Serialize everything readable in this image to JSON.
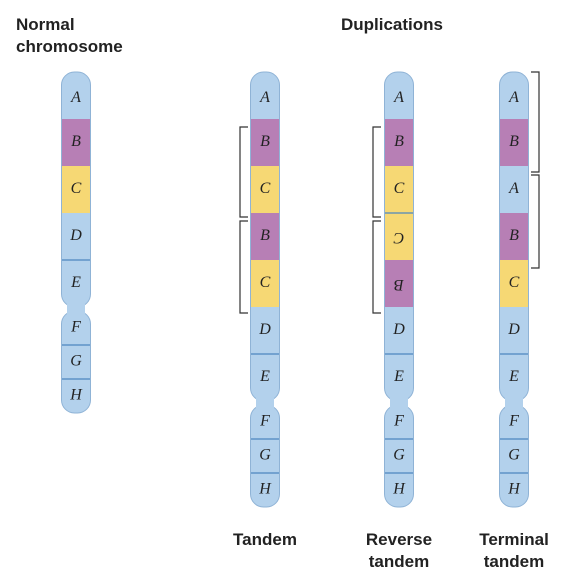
{
  "headers": {
    "normal": [
      "Normal",
      "chromosome"
    ],
    "duplications": "Duplications"
  },
  "chromosomes": [
    {
      "segments": [
        {
          "letter": "A",
          "color": "#b3d1ec"
        },
        {
          "letter": "B",
          "color": "#b77fb5"
        },
        {
          "letter": "C",
          "color": "#f6d874"
        },
        {
          "letter": "D",
          "color": "#b3d1ec"
        },
        {
          "letter": "E",
          "color": "#b3d1ec"
        },
        {
          "letter": "F",
          "color": "#b3d1ec"
        },
        {
          "letter": "G",
          "color": "#b3d1ec"
        },
        {
          "letter": "H",
          "color": "#b3d1ec"
        }
      ]
    },
    {
      "name": [
        "Tandem"
      ],
      "segments": [
        {
          "letter": "A",
          "color": "#b3d1ec"
        },
        {
          "letter": "B",
          "color": "#b77fb5"
        },
        {
          "letter": "C",
          "color": "#f6d874"
        },
        {
          "letter": "B",
          "color": "#b77fb5"
        },
        {
          "letter": "C",
          "color": "#f6d874"
        },
        {
          "letter": "D",
          "color": "#b3d1ec"
        },
        {
          "letter": "E",
          "color": "#b3d1ec"
        },
        {
          "letter": "F",
          "color": "#b3d1ec"
        },
        {
          "letter": "G",
          "color": "#b3d1ec"
        },
        {
          "letter": "H",
          "color": "#b3d1ec"
        }
      ]
    },
    {
      "name": [
        "Reverse",
        "tandem"
      ],
      "segments": [
        {
          "letter": "A",
          "color": "#b3d1ec"
        },
        {
          "letter": "B",
          "color": "#b77fb5"
        },
        {
          "letter": "C",
          "color": "#f6d874"
        },
        {
          "letter": "C",
          "color": "#f6d874",
          "inverted": true
        },
        {
          "letter": "B",
          "color": "#b77fb5",
          "inverted": true
        },
        {
          "letter": "D",
          "color": "#b3d1ec"
        },
        {
          "letter": "E",
          "color": "#b3d1ec"
        },
        {
          "letter": "F",
          "color": "#b3d1ec"
        },
        {
          "letter": "G",
          "color": "#b3d1ec"
        },
        {
          "letter": "H",
          "color": "#b3d1ec"
        }
      ]
    },
    {
      "name": [
        "Terminal",
        "tandem"
      ],
      "segments": [
        {
          "letter": "A",
          "color": "#b3d1ec"
        },
        {
          "letter": "B",
          "color": "#b77fb5"
        },
        {
          "letter": "A",
          "color": "#b3d1ec"
        },
        {
          "letter": "B",
          "color": "#b77fb5"
        },
        {
          "letter": "C",
          "color": "#f6d874"
        },
        {
          "letter": "D",
          "color": "#b3d1ec"
        },
        {
          "letter": "E",
          "color": "#b3d1ec"
        },
        {
          "letter": "F",
          "color": "#b3d1ec"
        },
        {
          "letter": "G",
          "color": "#b3d1ec"
        },
        {
          "letter": "H",
          "color": "#b3d1ec"
        }
      ]
    }
  ]
}
